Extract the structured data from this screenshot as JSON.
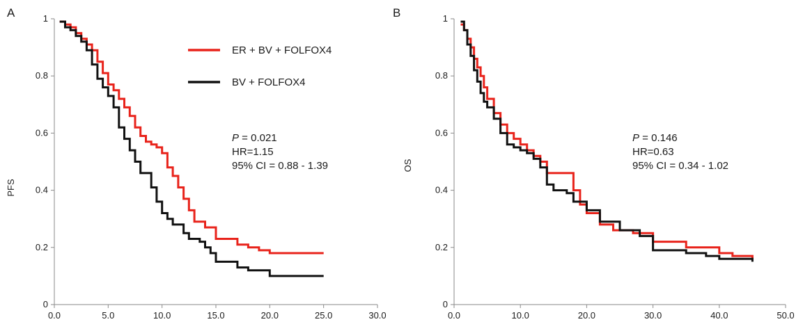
{
  "colors": {
    "red": "#e8231b",
    "black": "#111111",
    "axis": "#8a8a8a"
  },
  "chart_data": [
    {
      "type": "line",
      "panel_label": "A",
      "ylabel": "PFS",
      "xlim": [
        0,
        30
      ],
      "ylim": [
        0,
        1
      ],
      "x_ticks": [
        "0.0",
        "5.0",
        "10.0",
        "15.0",
        "20.0",
        "25.0",
        "30.0"
      ],
      "y_ticks": [
        "0",
        "0.2",
        "0.4",
        "0.6",
        "0.8",
        "1"
      ],
      "legend": [
        {
          "name": "ER + BV + FOLFOX4",
          "color": "#e8231b"
        },
        {
          "name": "BV + FOLFOX4",
          "color": "#111111"
        }
      ],
      "annotation": {
        "p_label": "P",
        "p_value": " = 0.021",
        "hr": "HR=1.15",
        "ci": "95% CI = 0.88 - 1.39"
      },
      "series": [
        {
          "name": "ER + BV + FOLFOX4",
          "color": "#e8231b",
          "points": [
            [
              0.5,
              0.99
            ],
            [
              1.0,
              0.98
            ],
            [
              1.5,
              0.97
            ],
            [
              2.0,
              0.95
            ],
            [
              2.5,
              0.93
            ],
            [
              3.0,
              0.91
            ],
            [
              3.5,
              0.89
            ],
            [
              4.0,
              0.85
            ],
            [
              4.5,
              0.81
            ],
            [
              5.0,
              0.77
            ],
            [
              5.5,
              0.75
            ],
            [
              6.0,
              0.72
            ],
            [
              6.5,
              0.69
            ],
            [
              7.0,
              0.66
            ],
            [
              7.5,
              0.62
            ],
            [
              8.0,
              0.59
            ],
            [
              8.5,
              0.57
            ],
            [
              9.0,
              0.56
            ],
            [
              9.5,
              0.55
            ],
            [
              10.0,
              0.53
            ],
            [
              10.5,
              0.48
            ],
            [
              11.0,
              0.45
            ],
            [
              11.5,
              0.41
            ],
            [
              12.0,
              0.37
            ],
            [
              12.5,
              0.33
            ],
            [
              13.0,
              0.29
            ],
            [
              14.0,
              0.27
            ],
            [
              15.0,
              0.23
            ],
            [
              17.0,
              0.21
            ],
            [
              18.0,
              0.2
            ],
            [
              19.0,
              0.19
            ],
            [
              20.0,
              0.18
            ],
            [
              25.0,
              0.18
            ]
          ]
        },
        {
          "name": "BV + FOLFOX4",
          "color": "#111111",
          "points": [
            [
              0.5,
              0.99
            ],
            [
              1.0,
              0.97
            ],
            [
              1.5,
              0.96
            ],
            [
              2.0,
              0.94
            ],
            [
              2.5,
              0.92
            ],
            [
              3.0,
              0.89
            ],
            [
              3.5,
              0.84
            ],
            [
              4.0,
              0.79
            ],
            [
              4.5,
              0.76
            ],
            [
              5.0,
              0.73
            ],
            [
              5.5,
              0.69
            ],
            [
              6.0,
              0.62
            ],
            [
              6.5,
              0.58
            ],
            [
              7.0,
              0.54
            ],
            [
              7.5,
              0.5
            ],
            [
              8.0,
              0.46
            ],
            [
              9.0,
              0.41
            ],
            [
              9.5,
              0.36
            ],
            [
              10.0,
              0.32
            ],
            [
              10.5,
              0.3
            ],
            [
              11.0,
              0.28
            ],
            [
              12.0,
              0.25
            ],
            [
              12.5,
              0.23
            ],
            [
              13.5,
              0.22
            ],
            [
              14.0,
              0.2
            ],
            [
              14.5,
              0.18
            ],
            [
              15.0,
              0.15
            ],
            [
              17.0,
              0.13
            ],
            [
              18.0,
              0.12
            ],
            [
              20.0,
              0.1
            ],
            [
              25.0,
              0.1
            ]
          ]
        }
      ]
    },
    {
      "type": "line",
      "panel_label": "B",
      "ylabel": "OS",
      "xlim": [
        0,
        50
      ],
      "ylim": [
        0,
        1
      ],
      "x_ticks": [
        "0.0",
        "10.0",
        "20.0",
        "30.0",
        "40.0",
        "50.0"
      ],
      "y_ticks": [
        "0",
        "0.2",
        "0.4",
        "0.6",
        "0.8",
        "1"
      ],
      "annotation": {
        "p_label": "P",
        "p_value": " = 0.146",
        "hr": "HR=0.63",
        "ci": "95% CI = 0.34 - 1.02"
      },
      "series": [
        {
          "name": "ER + BV + FOLFOX4",
          "color": "#e8231b",
          "points": [
            [
              1.0,
              0.98
            ],
            [
              1.5,
              0.96
            ],
            [
              2.0,
              0.93
            ],
            [
              2.5,
              0.9
            ],
            [
              3.0,
              0.86
            ],
            [
              3.5,
              0.83
            ],
            [
              4.0,
              0.8
            ],
            [
              4.5,
              0.76
            ],
            [
              5.0,
              0.72
            ],
            [
              6.0,
              0.67
            ],
            [
              7.0,
              0.63
            ],
            [
              8.0,
              0.6
            ],
            [
              9.0,
              0.58
            ],
            [
              10.0,
              0.56
            ],
            [
              11.0,
              0.54
            ],
            [
              12.0,
              0.52
            ],
            [
              13.0,
              0.5
            ],
            [
              14.0,
              0.46
            ],
            [
              17.0,
              0.46
            ],
            [
              18.0,
              0.4
            ],
            [
              19.0,
              0.35
            ],
            [
              20.0,
              0.32
            ],
            [
              22.0,
              0.28
            ],
            [
              24.0,
              0.26
            ],
            [
              27.0,
              0.25
            ],
            [
              30.0,
              0.22
            ],
            [
              35.0,
              0.2
            ],
            [
              40.0,
              0.18
            ],
            [
              42.0,
              0.17
            ],
            [
              45.0,
              0.16
            ]
          ]
        },
        {
          "name": "BV + FOLFOX4",
          "color": "#111111",
          "points": [
            [
              1.0,
              0.99
            ],
            [
              1.5,
              0.96
            ],
            [
              2.0,
              0.91
            ],
            [
              2.5,
              0.87
            ],
            [
              3.0,
              0.82
            ],
            [
              3.5,
              0.78
            ],
            [
              4.0,
              0.74
            ],
            [
              4.5,
              0.71
            ],
            [
              5.0,
              0.69
            ],
            [
              6.0,
              0.65
            ],
            [
              7.0,
              0.6
            ],
            [
              8.0,
              0.56
            ],
            [
              9.0,
              0.55
            ],
            [
              10.0,
              0.54
            ],
            [
              11.0,
              0.53
            ],
            [
              12.0,
              0.51
            ],
            [
              13.0,
              0.48
            ],
            [
              14.0,
              0.42
            ],
            [
              15.0,
              0.4
            ],
            [
              17.0,
              0.39
            ],
            [
              18.0,
              0.36
            ],
            [
              20.0,
              0.33
            ],
            [
              22.0,
              0.29
            ],
            [
              25.0,
              0.26
            ],
            [
              28.0,
              0.24
            ],
            [
              30.0,
              0.19
            ],
            [
              35.0,
              0.18
            ],
            [
              38.0,
              0.17
            ],
            [
              40.0,
              0.16
            ],
            [
              44.0,
              0.16
            ],
            [
              45.0,
              0.15
            ]
          ]
        }
      ]
    }
  ]
}
